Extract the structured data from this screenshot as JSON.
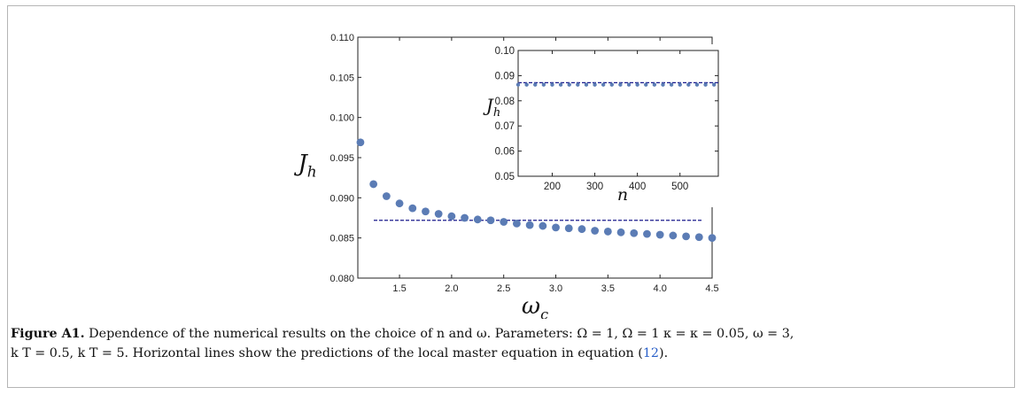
{
  "chart_data": [
    {
      "type": "scatter",
      "xlabel": "ω",
      "xlabel_sub": "c",
      "ylabel": "J",
      "ylabel_sub": "h",
      "xlim": [
        1.1,
        4.5
      ],
      "ylim": [
        0.08,
        0.11
      ],
      "xticks": [
        "1.5",
        "2.0",
        "2.5",
        "3.0",
        "3.5",
        "4.0",
        "4.5"
      ],
      "yticks": [
        "0.080",
        "0.085",
        "0.090",
        "0.095",
        "0.100",
        "0.105",
        "0.110"
      ],
      "x": [
        1.125,
        1.25,
        1.375,
        1.5,
        1.625,
        1.75,
        1.875,
        2.0,
        2.125,
        2.25,
        2.375,
        2.5,
        2.625,
        2.75,
        2.875,
        3.0,
        3.125,
        3.25,
        3.375,
        3.5,
        3.625,
        3.75,
        3.875,
        4.0,
        4.125,
        4.25,
        4.375,
        4.5
      ],
      "y": [
        0.0969,
        0.0917,
        0.0902,
        0.0893,
        0.0887,
        0.0883,
        0.088,
        0.0877,
        0.0875,
        0.0873,
        0.0872,
        0.087,
        0.0868,
        0.0866,
        0.0865,
        0.0863,
        0.0862,
        0.0861,
        0.0859,
        0.0858,
        0.0857,
        0.0856,
        0.0855,
        0.0854,
        0.0853,
        0.0852,
        0.0851,
        0.085
      ],
      "reference_line": 0.0872,
      "marker_color": "#5b7cb5",
      "line_color": "#1a1a8c",
      "grid": false
    },
    {
      "type": "scatter",
      "role": "inset",
      "xlabel": "n",
      "ylabel": "J",
      "ylabel_sub": "h",
      "xlim": [
        120,
        590
      ],
      "ylim": [
        0.05,
        0.1
      ],
      "xticks": [
        "200",
        "300",
        "400",
        "500"
      ],
      "yticks": [
        "0.05",
        "0.06",
        "0.07",
        "0.08",
        "0.09",
        "0.10"
      ],
      "x": [
        120,
        140,
        160,
        180,
        200,
        220,
        240,
        260,
        280,
        300,
        320,
        340,
        360,
        380,
        400,
        420,
        440,
        460,
        480,
        500,
        520,
        540,
        560,
        580
      ],
      "y": [
        0.0864,
        0.0864,
        0.0864,
        0.0864,
        0.0864,
        0.0864,
        0.0864,
        0.0864,
        0.0864,
        0.0864,
        0.0864,
        0.0864,
        0.0864,
        0.0864,
        0.0864,
        0.0864,
        0.0864,
        0.0864,
        0.0864,
        0.0864,
        0.0864,
        0.0864,
        0.0864,
        0.0864
      ],
      "reference_line": 0.0872,
      "marker_color": "#5b7cb5",
      "line_color": "#1a1a8c",
      "grid": false
    }
  ],
  "caption": {
    "label": "Figure A1.",
    "line1": " Dependence of the numerical results on the choice of n and ω. Parameters: Ω = 1, Ω = 1 κ = κ = 0.05, ω = 3,",
    "line2_a": "k T = 0.5, k T = 5. Horizontal lines show the predictions of the local master equation in equation (",
    "ref": "12",
    "line2_b": ")."
  }
}
